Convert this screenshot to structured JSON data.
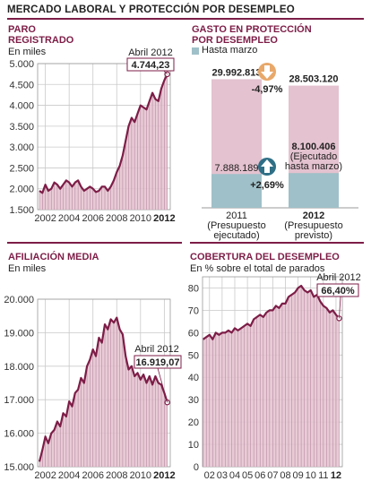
{
  "header": {
    "title": "MERCADO LABORAL Y PROTECCIÓN POR DESEMPLEO"
  },
  "colors": {
    "accent": "#7d1d47",
    "area": "#e4c2cf",
    "teal": "#9fc0c8",
    "arrow_down": "#e8a86a",
    "arrow_up": "#2f6f86"
  },
  "panels": {
    "paro": {
      "title_line1": "PARO",
      "title_line2": "REGISTRADO",
      "subtitle": "En miles",
      "callout_label": "Abril 2012",
      "callout_value": "4.744,23"
    },
    "gasto": {
      "title_line1": "GASTO EN PROTECCIÓN",
      "title_line2": "POR DESEMPLEO",
      "legend": "Hasta marzo",
      "change_2011_2012_total": "-4,97%",
      "change_executed": "+2,69%"
    },
    "afiliacion": {
      "title": "AFILIACIÓN MEDIA",
      "subtitle": "En miles",
      "callout_label": "Abril 2012",
      "callout_value": "16.919,07"
    },
    "cobertura": {
      "title": "COBERTURA DEL DESEMPLEO",
      "subtitle": "En % sobre el total de parados",
      "callout_label": "Abril 2012",
      "callout_value": "66,40%"
    }
  },
  "chart_data": [
    {
      "id": "paro",
      "type": "area",
      "title": "PARO REGISTRADO",
      "ylabel": "En miles",
      "ylim": [
        1500,
        5000
      ],
      "yticks": [
        "5.000",
        "4.500",
        "4.000",
        "3.500",
        "3.000",
        "2.500",
        "2.000",
        "1.500"
      ],
      "ytick_values": [
        5000,
        4500,
        4000,
        3500,
        3000,
        2500,
        2000,
        1500
      ],
      "xticks": [
        "2002",
        "2004",
        "2006",
        "2008",
        "2010",
        "2012"
      ],
      "xtick_values": [
        2002,
        2004,
        2006,
        2008,
        2010,
        2012
      ],
      "x": [
        2001.5,
        2001.75,
        2002,
        2002.25,
        2002.5,
        2002.75,
        2003,
        2003.25,
        2003.5,
        2003.75,
        2004,
        2004.25,
        2004.5,
        2004.75,
        2005,
        2005.25,
        2005.5,
        2005.75,
        2006,
        2006.25,
        2006.5,
        2006.75,
        2007,
        2007.25,
        2007.5,
        2007.75,
        2008,
        2008.25,
        2008.5,
        2008.75,
        2009,
        2009.25,
        2009.5,
        2009.75,
        2010,
        2010.25,
        2010.5,
        2010.75,
        2011,
        2011.25,
        2011.5,
        2011.75,
        2012,
        2012.25
      ],
      "y": [
        1950,
        1900,
        2100,
        1950,
        2000,
        2150,
        2100,
        2000,
        2100,
        2200,
        2150,
        2050,
        2150,
        2200,
        2050,
        1950,
        2000,
        2050,
        2000,
        1920,
        1950,
        2050,
        2050,
        1950,
        2050,
        2200,
        2400,
        2550,
        2800,
        3150,
        3500,
        3700,
        3600,
        3800,
        4000,
        3950,
        3900,
        4100,
        4300,
        4150,
        4100,
        4400,
        4600,
        4744.23
      ],
      "callout": {
        "label": "Abril 2012",
        "value": "4.744,23"
      }
    },
    {
      "id": "gasto",
      "type": "bar",
      "title": "GASTO EN PROTECCIÓN POR DESEMPLEO",
      "legend": [
        "Hasta marzo"
      ],
      "categories": [
        "2011 (Presupuesto ejecutado)",
        "2012 (Presupuesto previsto)"
      ],
      "category_labels": [
        {
          "year": "2011",
          "line2": "(Presupuesto",
          "line3": "ejecutado)"
        },
        {
          "year": "2012",
          "line2": "(Presupuesto",
          "line3": "previsto)"
        }
      ],
      "series": [
        {
          "name": "Total",
          "values": [
            29992813,
            28503120
          ],
          "labels": [
            "29.992.813",
            "28.503.120"
          ]
        },
        {
          "name": "Hasta marzo",
          "values": [
            7888189,
            8100406
          ],
          "labels": [
            "7.888.189",
            "8.100.406"
          ]
        }
      ],
      "annotations": [
        "-4,97%",
        "+2,69%",
        "(Ejecutado",
        "hasta marzo)"
      ]
    },
    {
      "id": "afiliacion",
      "type": "area",
      "title": "AFILIACIÓN MEDIA",
      "ylabel": "En miles",
      "ylim": [
        15000,
        20000
      ],
      "yticks": [
        "20.000",
        "19.000",
        "18.000",
        "17.000",
        "16.000",
        "15.000"
      ],
      "ytick_values": [
        20000,
        19000,
        18000,
        17000,
        16000,
        15000
      ],
      "xticks": [
        "2002",
        "2004",
        "2006",
        "2008",
        "2010",
        "2012"
      ],
      "xtick_values": [
        2002,
        2004,
        2006,
        2008,
        2010,
        2012
      ],
      "x": [
        2001.5,
        2001.75,
        2002,
        2002.25,
        2002.5,
        2002.75,
        2003,
        2003.25,
        2003.5,
        2003.75,
        2004,
        2004.25,
        2004.5,
        2004.75,
        2005,
        2005.25,
        2005.5,
        2005.75,
        2006,
        2006.25,
        2006.5,
        2006.75,
        2007,
        2007.25,
        2007.5,
        2007.75,
        2008,
        2008.25,
        2008.5,
        2008.75,
        2009,
        2009.25,
        2009.5,
        2009.75,
        2010,
        2010.25,
        2010.5,
        2010.75,
        2011,
        2011.25,
        2011.5,
        2011.75,
        2012,
        2012.25
      ],
      "y": [
        15150,
        15500,
        15900,
        15700,
        16000,
        16100,
        16350,
        16200,
        16600,
        16500,
        16950,
        16800,
        17200,
        17300,
        17650,
        17500,
        18000,
        18200,
        18500,
        18300,
        18850,
        18700,
        19250,
        19100,
        19400,
        19300,
        19450,
        19100,
        18950,
        18300,
        17900,
        18000,
        17700,
        17800,
        17600,
        17750,
        17500,
        17700,
        17450,
        17700,
        17500,
        17450,
        17200,
        16919.07
      ],
      "callout": {
        "label": "Abril 2012",
        "value": "16.919,07"
      }
    },
    {
      "id": "cobertura",
      "type": "area",
      "title": "COBERTURA DEL DESEMPLEO",
      "ylabel": "En % sobre el total de parados",
      "ylim": [
        0,
        85
      ],
      "yticks": [
        "80",
        "70",
        "60",
        "50",
        "40",
        "30",
        "20",
        "10",
        "0"
      ],
      "ytick_values": [
        80,
        70,
        60,
        50,
        40,
        30,
        20,
        10,
        0
      ],
      "xticks": [
        "02",
        "03",
        "04",
        "05",
        "06",
        "07",
        "08",
        "09",
        "10",
        "11",
        "12"
      ],
      "xtick_values": [
        2002,
        2003,
        2004,
        2005,
        2006,
        2007,
        2008,
        2009,
        2010,
        2011,
        2012
      ],
      "x": [
        2001.5,
        2001.75,
        2002,
        2002.25,
        2002.5,
        2002.75,
        2003,
        2003.25,
        2003.5,
        2003.75,
        2004,
        2004.25,
        2004.5,
        2004.75,
        2005,
        2005.25,
        2005.5,
        2005.75,
        2006,
        2006.25,
        2006.5,
        2006.75,
        2007,
        2007.25,
        2007.5,
        2007.75,
        2008,
        2008.25,
        2008.5,
        2008.75,
        2009,
        2009.25,
        2009.5,
        2009.75,
        2010,
        2010.25,
        2010.5,
        2010.75,
        2011,
        2011.25,
        2011.5,
        2011.75,
        2012,
        2012.25
      ],
      "y": [
        57,
        58,
        59,
        57,
        60,
        59,
        60,
        60,
        61,
        60,
        62,
        61,
        62,
        63,
        64,
        63,
        66,
        67,
        68,
        67,
        69,
        70,
        70,
        72,
        71,
        73,
        73,
        76,
        77,
        78,
        80,
        81,
        79,
        78,
        79,
        76,
        77,
        74,
        72,
        71,
        69,
        70,
        68,
        66.4
      ],
      "callout": {
        "label": "Abril 2012",
        "value": "66,40%"
      }
    }
  ]
}
